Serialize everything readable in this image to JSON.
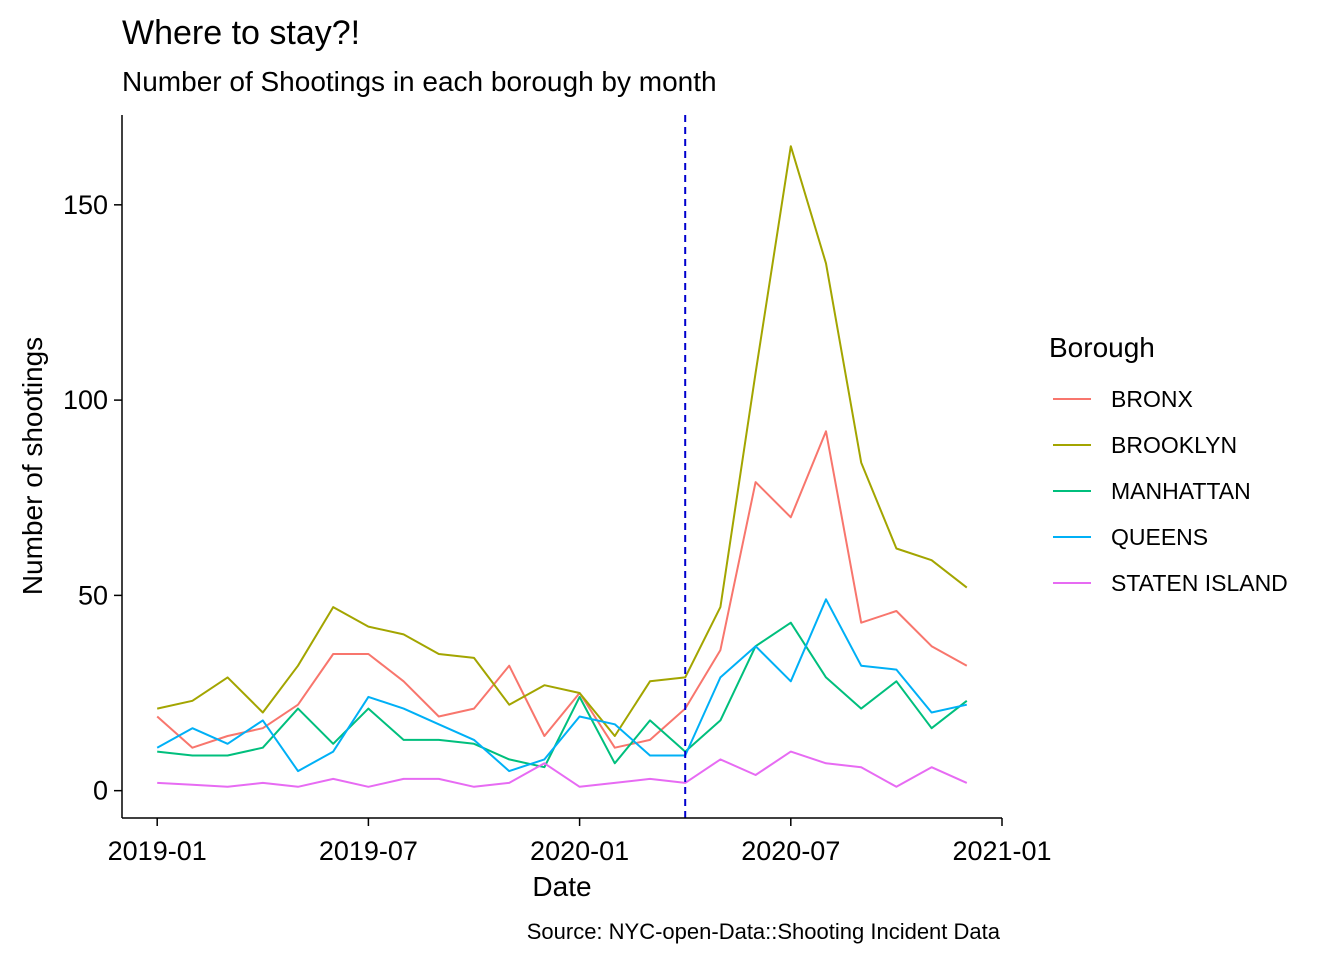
{
  "chart_data": {
    "type": "line",
    "title": "Where to stay?!",
    "subtitle": "Number of Shootings in each borough by month",
    "xlabel": "Date",
    "ylabel": "Number of shootings",
    "caption": "Source: NYC-open-Data::Shooting Incident Data",
    "x_ticks": [
      "2019-01",
      "2019-07",
      "2020-01",
      "2020-07",
      "2021-01"
    ],
    "y_ticks": [
      0,
      50,
      100,
      150
    ],
    "xlim": [
      "2018-12",
      "2021-01"
    ],
    "ylim": [
      -7,
      173
    ],
    "grid": false,
    "legend_title": "Borough",
    "legend_position": "right",
    "reference_line": {
      "x": "2020-04",
      "style": "dashed",
      "color": "#0000CD"
    },
    "x": [
      "2019-01",
      "2019-02",
      "2019-03",
      "2019-04",
      "2019-05",
      "2019-06",
      "2019-07",
      "2019-08",
      "2019-09",
      "2019-10",
      "2019-11",
      "2019-12",
      "2020-01",
      "2020-02",
      "2020-03",
      "2020-04",
      "2020-05",
      "2020-06",
      "2020-07",
      "2020-08",
      "2020-09",
      "2020-10",
      "2020-11",
      "2020-12"
    ],
    "series": [
      {
        "name": "BRONX",
        "color": "#F8766D",
        "values": [
          19,
          11,
          14,
          16,
          22,
          35,
          35,
          28,
          19,
          21,
          32,
          14,
          25,
          11,
          13,
          21,
          36,
          79,
          70,
          92,
          43,
          46,
          37,
          32
        ]
      },
      {
        "name": "BROOKLYN",
        "color": "#A3A500",
        "values": [
          21,
          23,
          29,
          20,
          32,
          47,
          42,
          40,
          35,
          34,
          22,
          27,
          25,
          14,
          28,
          29,
          47,
          107,
          165,
          135,
          84,
          62,
          59,
          52
        ]
      },
      {
        "name": "MANHATTAN",
        "color": "#00BF7D",
        "values": [
          10,
          9,
          9,
          11,
          21,
          12,
          21,
          13,
          13,
          12,
          8,
          6,
          24,
          7,
          18,
          10,
          18,
          37,
          43,
          29,
          21,
          28,
          16,
          23
        ]
      },
      {
        "name": "QUEENS",
        "color": "#00B0F6",
        "values": [
          11,
          16,
          12,
          18,
          5,
          10,
          24,
          21,
          17,
          13,
          5,
          8,
          19,
          17,
          9,
          9,
          29,
          37,
          28,
          49,
          32,
          31,
          20,
          22
        ]
      },
      {
        "name": "STATEN ISLAND",
        "color": "#E76BF3",
        "values": [
          2,
          1.5,
          1,
          2,
          1,
          3,
          1,
          3,
          3,
          1,
          2,
          7,
          1,
          2,
          3,
          2,
          8,
          4,
          10,
          7,
          6,
          1,
          6,
          2
        ]
      }
    ]
  }
}
